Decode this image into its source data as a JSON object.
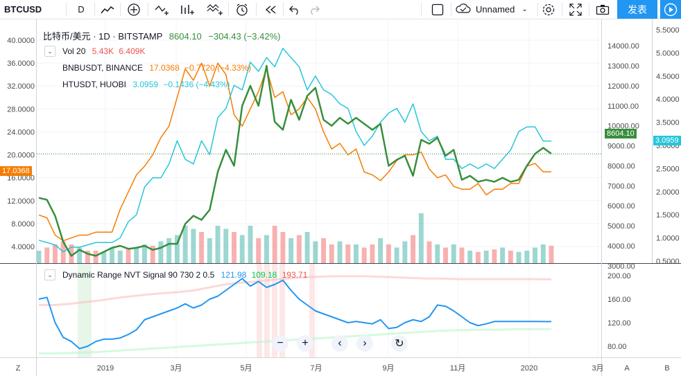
{
  "toolbar": {
    "symbol": "BTCUSD",
    "interval": "D",
    "layout_name": "Unnamed",
    "publish_label": "发表",
    "icons": [
      "line-chart-icon",
      "add-indicator-icon",
      "compare-icon",
      "indicators-icon",
      "templates-icon",
      "alert-icon",
      "replay-icon",
      "undo-icon",
      "redo-icon",
      "layout-icon",
      "cloud-save-icon",
      "settings-icon",
      "fullscreen-icon",
      "snapshot-icon",
      "play-icon"
    ]
  },
  "legend": {
    "main_title": "比特币/美元 · 1D · BITSTAMP",
    "main_price": "8604.10",
    "main_change": "−304.43 (−3.42%)",
    "vol_label": "Vol 20",
    "vol_v1": "5.43K",
    "vol_v2": "6.409K",
    "series2_name": "BNBUSDT, BINANCE",
    "series2_value": "17.0368",
    "series2_change": "−0.7720 (−4.33%)",
    "series3_name": "HTUSDT, HUOBI",
    "series3_value": "3.0959",
    "series3_change": "−0.1436 (−4.43%)",
    "indicator_name": "Dynamic Range NVT Signal 90 730 2 0.5",
    "ind_v1": "121.98",
    "ind_v2": "109.18",
    "ind_v3": "193.71"
  },
  "price_tags": {
    "left": "17.0368",
    "main": "8604.10",
    "right": "3.0959"
  },
  "axes": {
    "left_ticks": [
      "40.0000",
      "36.0000",
      "32.0000",
      "28.0000",
      "24.0000",
      "20.0000",
      "16.0000",
      "12.0000",
      "8.0000",
      "4.0000"
    ],
    "main_ticks": [
      "14000.00",
      "13000.00",
      "12000.00",
      "11000.00",
      "10000.00",
      "9000.00",
      "8000.00",
      "7000.00",
      "6000.00",
      "5000.00",
      "4000.00",
      "3000.00"
    ],
    "right_ticks": [
      "5.5000",
      "5.0000",
      "4.5000",
      "4.0000",
      "3.5000",
      "3.0000",
      "2.5000",
      "2.0000",
      "1.5000",
      "1.0000",
      "0.5000"
    ],
    "ind_ticks": [
      "200.00",
      "160.00",
      "120.00",
      "80.00"
    ],
    "time_ticks": [
      "2019",
      "3月",
      "5月",
      "7月",
      "9月",
      "11月",
      "2020",
      "3月"
    ],
    "corner_left": "Z",
    "corner_a": "A",
    "corner_b": "B"
  },
  "colors": {
    "btc": "#388e3c",
    "bnb": "#f57c00",
    "ht": "#26c6da",
    "nvt": "#2196f3",
    "upper_band": "#f8c0c0",
    "lower_band": "#b9f6ca",
    "accent": "#2196f3"
  },
  "chart_data": {
    "type": "line",
    "x_range": [
      "2018-11-01",
      "2020-03-31"
    ],
    "series": [
      {
        "name": "BTCUSD",
        "values": [
          6400,
          6300,
          5500,
          4200,
          3500,
          3800,
          3600,
          3500,
          3700,
          3900,
          4000,
          3850,
          3900,
          4000,
          3800,
          3900,
          4100,
          4100,
          5100,
          5500,
          5300,
          5800,
          7700,
          8800,
          8000,
          11000,
          12000,
          11000,
          13000,
          10200,
          9800,
          11300,
          10300,
          11500,
          11900,
          10300,
          10000,
          10400,
          10100,
          10400,
          10100,
          9800,
          10100,
          8000,
          8300,
          8500,
          7500,
          9300,
          9100,
          9400,
          8500,
          8800,
          7300,
          7500,
          7200,
          7300,
          7200,
          7400,
          7200,
          7300,
          8000,
          8600,
          8900,
          8604
        ]
      },
      {
        "name": "BNBUSDT",
        "values": [
          9.5,
          9,
          6,
          5,
          5.5,
          6,
          6,
          6.5,
          6.5,
          6.5,
          10.5,
          13.5,
          16.5,
          18,
          20,
          23,
          25,
          30,
          35,
          33,
          36,
          32,
          36,
          34,
          27,
          25,
          28,
          31,
          35,
          30,
          31,
          27,
          28,
          30,
          28,
          24,
          21,
          22,
          20,
          21,
          17,
          16.5,
          15.5,
          17,
          19,
          20,
          20,
          20.5,
          17.5,
          16,
          16.5,
          14.5,
          14,
          14,
          15,
          13,
          14,
          14,
          15,
          15,
          18,
          18.5,
          17.0368,
          17.0368
        ]
      },
      {
        "name": "HTUSDT",
        "values": [
          0.95,
          0.9,
          0.85,
          0.7,
          0.8,
          0.8,
          0.85,
          0.9,
          0.9,
          0.9,
          1.0,
          1.35,
          1.5,
          2.1,
          2.3,
          2.3,
          2.6,
          3.1,
          2.7,
          2.6,
          3.1,
          2.8,
          3.6,
          3.8,
          4.3,
          4.2,
          4.8,
          4.6,
          4.9,
          4.7,
          5.1,
          4.9,
          4.7,
          4.2,
          4.5,
          4.2,
          4.1,
          3.9,
          3.8,
          3.3,
          3.0,
          3.2,
          3.5,
          3.7,
          3.8,
          3.5,
          3.9,
          3.3,
          3.1,
          3.2,
          2.7,
          2.7,
          2.5,
          2.6,
          2.5,
          2.6,
          2.5,
          2.7,
          2.9,
          3.3,
          3.4,
          3.4,
          3.0959,
          3.0959
        ]
      },
      {
        "name": "Dynamic Range NVT Signal",
        "values": [
          160,
          163,
          120,
          95,
          88,
          76,
          80,
          88,
          92,
          92,
          94,
          100,
          108,
          125,
          130,
          135,
          140,
          145,
          152,
          145,
          150,
          160,
          165,
          175,
          185,
          195,
          182,
          190,
          180,
          185,
          192,
          175,
          160,
          150,
          140,
          135,
          130,
          125,
          120,
          122,
          120,
          118,
          125,
          110,
          112,
          120,
          125,
          122,
          130,
          150,
          148,
          140,
          130,
          120,
          115,
          118,
          122,
          122,
          122,
          122,
          122,
          122,
          121.98,
          121.98
        ]
      }
    ],
    "volume": [
      20,
      25,
      30,
      35,
      30,
      25,
      20,
      20,
      18,
      25,
      20,
      22,
      25,
      30,
      28,
      35,
      40,
      45,
      60,
      55,
      50,
      40,
      60,
      55,
      50,
      45,
      60,
      40,
      45,
      60,
      50,
      40,
      45,
      50,
      35,
      40,
      30,
      35,
      30,
      30,
      25,
      30,
      40,
      30,
      25,
      35,
      45,
      80,
      35,
      30,
      25,
      30,
      25,
      20,
      18,
      20,
      22,
      25,
      20,
      18,
      20,
      25,
      30,
      28
    ],
    "upper_band": [
      150,
      150,
      152,
      155,
      158,
      162,
      165,
      168,
      170,
      172,
      175,
      180,
      185,
      188,
      190,
      193,
      195,
      197,
      198,
      199,
      199,
      199,
      198,
      197,
      196,
      195,
      195,
      194,
      194,
      194,
      194,
      194,
      194,
      193.71
    ],
    "lower_band": [
      68,
      68,
      69,
      70,
      72,
      74,
      76,
      78,
      80,
      82,
      84,
      86,
      88,
      90,
      92,
      94,
      96,
      98,
      100,
      102,
      104,
      106,
      107,
      108,
      108,
      109,
      109,
      109.18
    ]
  }
}
